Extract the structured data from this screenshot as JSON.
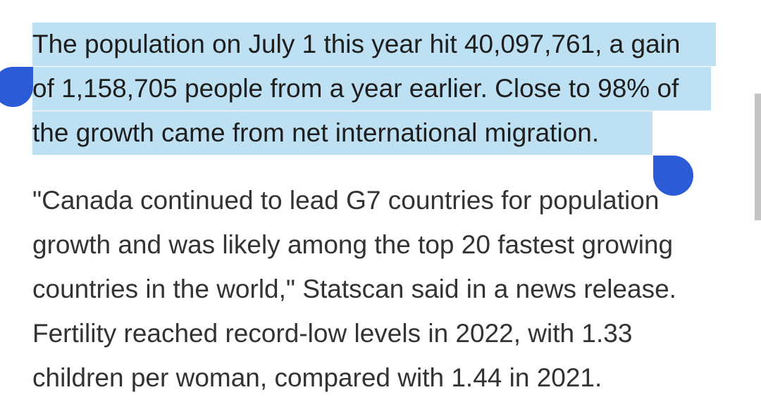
{
  "article": {
    "selected_lines": [
      "The population on July 1 this year hit 40,097,761, a gain",
      "of 1,158,705 people from a year earlier. Close to 98% of",
      "the growth came from net international migration."
    ],
    "body_lines": [
      "\"Canada continued to lead G7 countries for population",
      "growth and was likely among the top 20 fastest growing",
      "countries in the world,\" Statscan said in a news release.",
      "Fertility reached record-low levels in 2022, with 1.33",
      "children per woman, compared with 1.44 in 2021."
    ]
  },
  "colors": {
    "selection_highlight": "#bde0f2",
    "selection_handle": "#2b5bd7",
    "text": "#333333",
    "scrollbar": "#c4c4c4"
  }
}
